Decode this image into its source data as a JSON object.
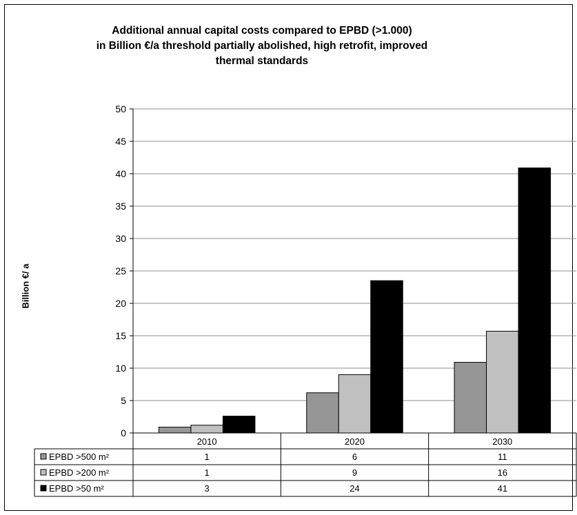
{
  "chart_data": {
    "type": "bar",
    "title_lines": [
      "Additional annual capital costs compared to EPBD (>1.000)",
      "in Billion €/a threshold partially abolished, high retrofit, improved",
      "thermal standards"
    ],
    "xlabel": "",
    "ylabel": "Billion €/ a",
    "ylim": [
      0,
      50
    ],
    "yticks": [
      "0",
      "5",
      "10",
      "15",
      "20",
      "25",
      "30",
      "35",
      "40",
      "45",
      "50"
    ],
    "grid": true,
    "legend": "data-table",
    "categories": [
      "2010",
      "2020",
      "2030"
    ],
    "series": [
      {
        "name": "EPBD >500 m²",
        "color": "#969696",
        "values": [
          0.9,
          6.2,
          10.9
        ],
        "labels": [
          "1",
          "6",
          "11"
        ]
      },
      {
        "name": "EPBD >200 m²",
        "color": "#c0c0c0",
        "values": [
          1.2,
          9.0,
          15.7
        ],
        "labels": [
          "1",
          "9",
          "16"
        ]
      },
      {
        "name": "EPBD >50 m²",
        "color": "#000000",
        "values": [
          2.6,
          23.5,
          40.9
        ],
        "labels": [
          "3",
          "24",
          "41"
        ]
      }
    ]
  }
}
